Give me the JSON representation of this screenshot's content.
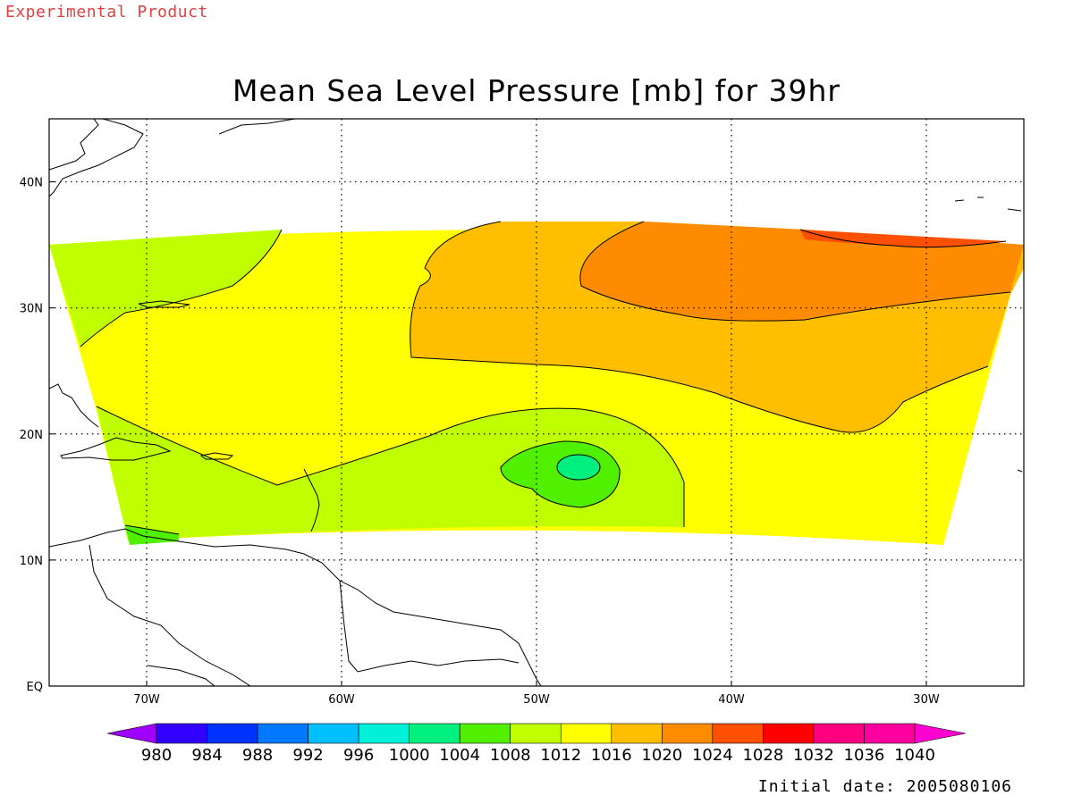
{
  "header": {
    "experimental": "Experimental Product",
    "title": "Mean Sea Level Pressure [mb] for 39hr",
    "initial_date": "Initial date: 2005080106"
  },
  "map": {
    "x_ticks": [
      {
        "lon": -70,
        "label": "70W"
      },
      {
        "lon": -60,
        "label": "60W"
      },
      {
        "lon": -50,
        "label": "50W"
      },
      {
        "lon": -40,
        "label": "40W"
      },
      {
        "lon": -30,
        "label": "30W"
      }
    ],
    "y_ticks": [
      {
        "lat": 0,
        "label": "EQ"
      },
      {
        "lat": 10,
        "label": "10N"
      },
      {
        "lat": 20,
        "label": "20N"
      },
      {
        "lat": 30,
        "label": "30N"
      },
      {
        "lat": 40,
        "label": "40N"
      }
    ],
    "grid": true,
    "extent": {
      "lon_min": -75,
      "lon_max": -25,
      "lat_min": 0,
      "lat_max": 45
    }
  },
  "colorbar": {
    "labels": [
      "980",
      "984",
      "988",
      "992",
      "996",
      "1000",
      "1004",
      "1008",
      "1012",
      "1016",
      "1020",
      "1024",
      "1028",
      "1032",
      "1036",
      "1040"
    ],
    "colors": [
      "#a000ff",
      "#3200ff",
      "#0032ff",
      "#0078ff",
      "#00bfff",
      "#00f0d8",
      "#00f080",
      "#50f000",
      "#c0ff00",
      "#ffff00",
      "#ffbf00",
      "#ff8c00",
      "#ff5000",
      "#ff0000",
      "#ff0080",
      "#ff00a0",
      "#ff00d0"
    ]
  }
}
